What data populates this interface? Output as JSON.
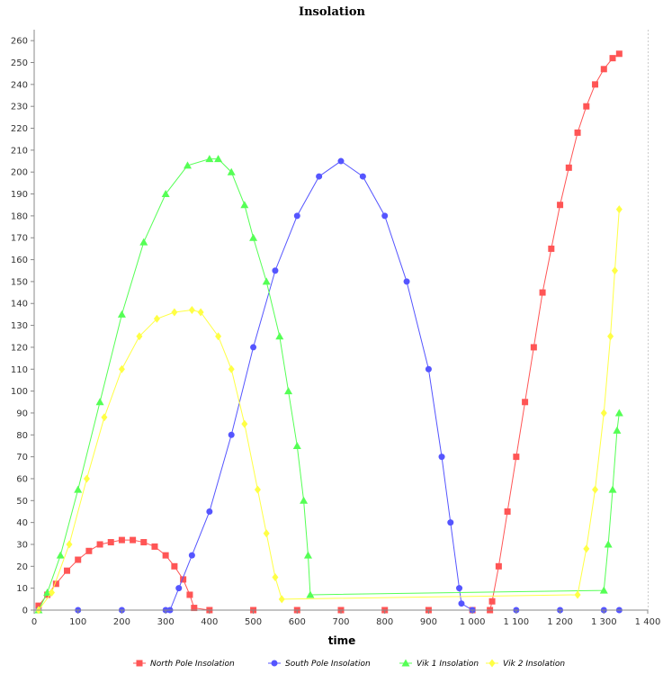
{
  "chart_data": {
    "type": "scatter",
    "title": "Insolation",
    "xlabel": "time",
    "ylabel": "",
    "xlim": [
      0,
      1400
    ],
    "ylim": [
      0,
      265
    ],
    "grid": true,
    "legend_position": "bottom",
    "x_tick_labels": [
      "0",
      "100",
      "200",
      "300",
      "400",
      "500",
      "600",
      "700",
      "800",
      "900",
      "1 000",
      "1 100",
      "1 200",
      "1 300",
      "1 400"
    ],
    "y_tick_labels": [
      "0",
      "10",
      "20",
      "30",
      "40",
      "50",
      "60",
      "70",
      "80",
      "90",
      "100",
      "110",
      "120",
      "130",
      "140",
      "150",
      "160",
      "170",
      "180",
      "190",
      "200",
      "210",
      "220",
      "230",
      "240",
      "250",
      "260"
    ],
    "series": [
      {
        "name": "North Pole Insolation",
        "color": "#ff5555",
        "marker": "square",
        "points": [
          [
            10,
            2
          ],
          [
            30,
            7
          ],
          [
            50,
            12
          ],
          [
            75,
            18
          ],
          [
            100,
            23
          ],
          [
            125,
            27
          ],
          [
            150,
            30
          ],
          [
            175,
            31
          ],
          [
            200,
            32
          ],
          [
            225,
            32
          ],
          [
            250,
            31
          ],
          [
            275,
            29
          ],
          [
            300,
            25
          ],
          [
            320,
            20
          ],
          [
            340,
            14
          ],
          [
            355,
            7
          ],
          [
            365,
            1
          ],
          [
            400,
            0
          ],
          [
            500,
            0
          ],
          [
            600,
            0
          ],
          [
            700,
            0
          ],
          [
            800,
            0
          ],
          [
            900,
            0
          ],
          [
            1000,
            0
          ],
          [
            1040,
            0
          ],
          [
            1045,
            4
          ],
          [
            1060,
            20
          ],
          [
            1080,
            45
          ],
          [
            1100,
            70
          ],
          [
            1120,
            95
          ],
          [
            1140,
            120
          ],
          [
            1160,
            145
          ],
          [
            1180,
            165
          ],
          [
            1200,
            185
          ],
          [
            1220,
            202
          ],
          [
            1240,
            218
          ],
          [
            1260,
            230
          ],
          [
            1280,
            240
          ],
          [
            1300,
            247
          ],
          [
            1320,
            252
          ],
          [
            1335,
            254
          ]
        ]
      },
      {
        "name": "South Pole Insolation",
        "color": "#5555ff",
        "marker": "circle",
        "points": [
          [
            10,
            0
          ],
          [
            100,
            0
          ],
          [
            200,
            0
          ],
          [
            300,
            0
          ],
          [
            310,
            0
          ],
          [
            330,
            10
          ],
          [
            360,
            25
          ],
          [
            400,
            45
          ],
          [
            450,
            80
          ],
          [
            500,
            120
          ],
          [
            550,
            155
          ],
          [
            600,
            180
          ],
          [
            650,
            198
          ],
          [
            700,
            205
          ],
          [
            750,
            198
          ],
          [
            800,
            180
          ],
          [
            850,
            150
          ],
          [
            900,
            110
          ],
          [
            930,
            70
          ],
          [
            950,
            40
          ],
          [
            970,
            10
          ],
          [
            975,
            3
          ],
          [
            1000,
            0
          ],
          [
            1100,
            0
          ],
          [
            1200,
            0
          ],
          [
            1300,
            0
          ],
          [
            1335,
            0
          ]
        ]
      },
      {
        "name": "Vik 1 Insolation",
        "color": "#55ff55",
        "marker": "triangle",
        "points": [
          [
            10,
            0
          ],
          [
            30,
            8
          ],
          [
            60,
            25
          ],
          [
            100,
            55
          ],
          [
            150,
            95
          ],
          [
            200,
            135
          ],
          [
            250,
            168
          ],
          [
            300,
            190
          ],
          [
            350,
            203
          ],
          [
            400,
            206
          ],
          [
            420,
            206
          ],
          [
            450,
            200
          ],
          [
            480,
            185
          ],
          [
            500,
            170
          ],
          [
            530,
            150
          ],
          [
            560,
            125
          ],
          [
            580,
            100
          ],
          [
            600,
            75
          ],
          [
            615,
            50
          ],
          [
            625,
            25
          ],
          [
            630,
            7
          ],
          [
            1300,
            9
          ],
          [
            1310,
            30
          ],
          [
            1320,
            55
          ],
          [
            1330,
            82
          ],
          [
            1335,
            90
          ]
        ]
      },
      {
        "name": "Vik 2 Insolation",
        "color": "#ffff44",
        "marker": "diamond",
        "points": [
          [
            10,
            0
          ],
          [
            40,
            8
          ],
          [
            80,
            30
          ],
          [
            120,
            60
          ],
          [
            160,
            88
          ],
          [
            200,
            110
          ],
          [
            240,
            125
          ],
          [
            280,
            133
          ],
          [
            320,
            136
          ],
          [
            360,
            137
          ],
          [
            380,
            136
          ],
          [
            420,
            125
          ],
          [
            450,
            110
          ],
          [
            480,
            85
          ],
          [
            510,
            55
          ],
          [
            530,
            35
          ],
          [
            550,
            15
          ],
          [
            565,
            5
          ],
          [
            1240,
            7
          ],
          [
            1260,
            28
          ],
          [
            1280,
            55
          ],
          [
            1300,
            90
          ],
          [
            1315,
            125
          ],
          [
            1325,
            155
          ],
          [
            1335,
            183
          ]
        ]
      }
    ]
  }
}
